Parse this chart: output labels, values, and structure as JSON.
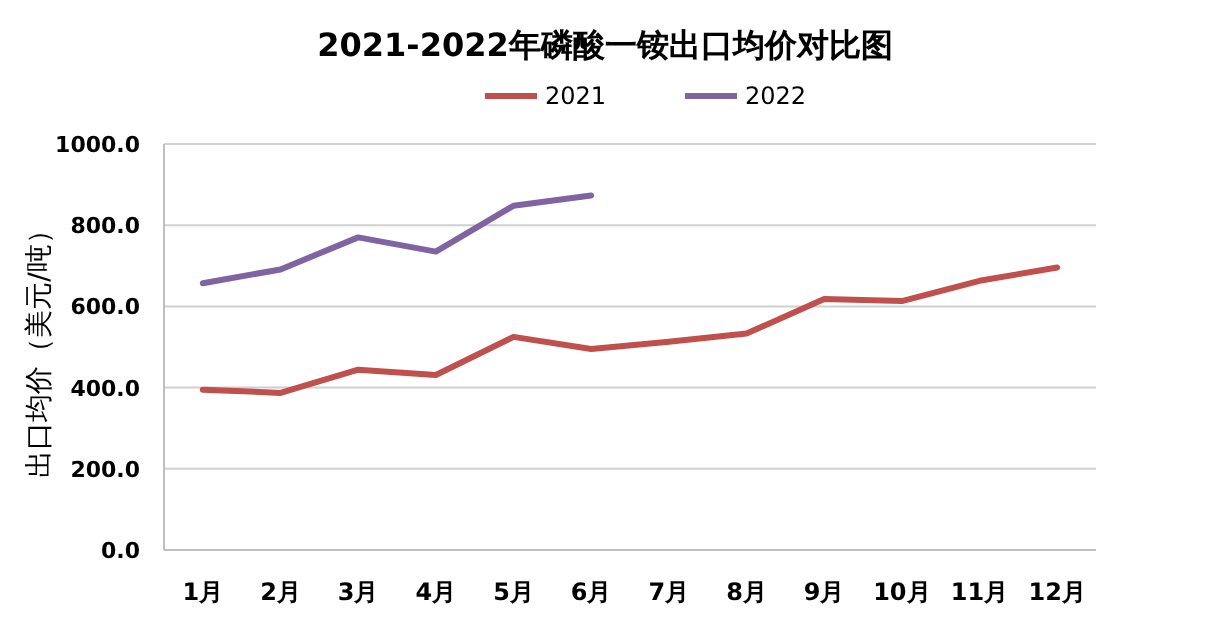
{
  "chart_data": {
    "type": "line",
    "title": "2021-2022年磷酸一铵出口均价对比图",
    "ylabel": "出口均价（美元/吨）",
    "categories": [
      "1月",
      "2月",
      "3月",
      "4月",
      "5月",
      "6月",
      "7月",
      "8月",
      "9月",
      "10月",
      "11月",
      "12月"
    ],
    "series": [
      {
        "name": "2021",
        "color": "#c0504d",
        "values": [
          395,
          387,
          444,
          431,
          525,
          495,
          513,
          533,
          618,
          613,
          663,
          696
        ]
      },
      {
        "name": "2022",
        "color": "#8064a2",
        "values": [
          657,
          691,
          770,
          735,
          848,
          873,
          null,
          null,
          null,
          null,
          null,
          null
        ]
      }
    ],
    "ylim": [
      0,
      1000
    ],
    "yticks": [
      {
        "value": 0,
        "label": "0.0"
      },
      {
        "value": 200,
        "label": "200.0"
      },
      {
        "value": 400,
        "label": "400.0"
      },
      {
        "value": 600,
        "label": "600.0"
      },
      {
        "value": 800,
        "label": "800.0"
      },
      {
        "value": 1000,
        "label": "1000.0"
      }
    ],
    "grid": "y",
    "legend": "top",
    "marker": "none",
    "line_style": "solid"
  }
}
